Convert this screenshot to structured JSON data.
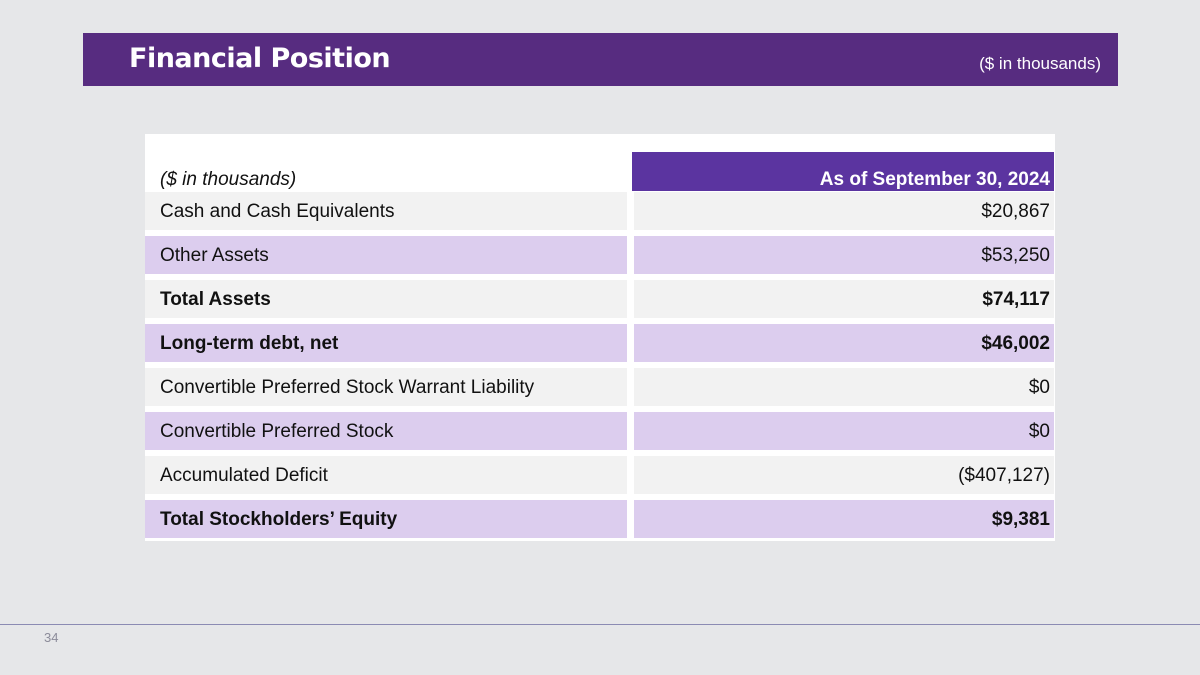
{
  "header": {
    "title": "Financial Position",
    "units": "($ in thousands)"
  },
  "table": {
    "label_header": "($ in thousands)",
    "column_header": "As of September 30, 2024",
    "rows": [
      {
        "label": "Cash and Cash Equivalents",
        "value": "$20,867",
        "bold": false,
        "shade": "grey"
      },
      {
        "label": "Other Assets",
        "value": "$53,250",
        "bold": false,
        "shade": "lavender"
      },
      {
        "label": "Total Assets",
        "value": "$74,117",
        "bold": true,
        "shade": "grey"
      },
      {
        "label": "Long-term debt, net",
        "value": "$46,002",
        "bold": true,
        "shade": "lavender"
      },
      {
        "label": "Convertible Preferred Stock Warrant Liability",
        "value": "$0",
        "bold": false,
        "shade": "grey"
      },
      {
        "label": "Convertible Preferred Stock",
        "value": "$0",
        "bold": false,
        "shade": "lavender"
      },
      {
        "label": "Accumulated Deficit",
        "value": "($407,127)",
        "bold": false,
        "shade": "grey"
      },
      {
        "label": "Total Stockholders’ Equity",
        "value": "$9,381",
        "bold": true,
        "shade": "lavender"
      }
    ]
  },
  "footer": {
    "page_number": "34"
  },
  "colors": {
    "header_bar": "#572c80",
    "column_header": "#5b34a0",
    "row_grey": "#f2f2f2",
    "row_lavender": "#dccdee",
    "background": "#e6e7e9"
  }
}
